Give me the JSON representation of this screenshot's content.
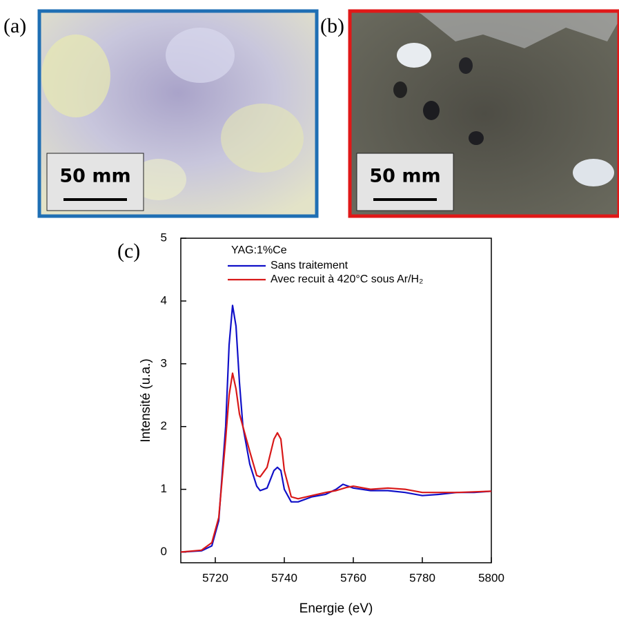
{
  "panels": [
    {
      "label": "(a)",
      "scale_bar": "50 mm"
    },
    {
      "label": "(b)",
      "scale_bar": "50 mm"
    },
    {
      "label": "(c)"
    }
  ],
  "chart_data": {
    "type": "line",
    "legend_title": "YAG:1%Ce",
    "x_label": "Energie (eV)",
    "y_label": "Intensité (u.a.)",
    "xlim": [
      5710,
      5800
    ],
    "xticks": [
      5720,
      5740,
      5760,
      5780,
      5800
    ],
    "ylim": [
      -0.17,
      5
    ],
    "yticks": [
      0,
      1,
      2,
      3,
      4,
      5
    ],
    "legend": "top-left",
    "series": [
      {
        "name": "Sans traitement",
        "color": "#1010c8",
        "x": [
          5710,
          5716,
          5719,
          5721,
          5723,
          5724,
          5725,
          5726,
          5727,
          5728,
          5730,
          5732,
          5733,
          5735,
          5737,
          5738,
          5739,
          5740,
          5742,
          5744,
          5748,
          5752,
          5755,
          5757,
          5760,
          5765,
          5770,
          5775,
          5780,
          5785,
          5790,
          5795,
          5800
        ],
        "values": [
          0,
          0.02,
          0.1,
          0.5,
          2.0,
          3.3,
          3.93,
          3.6,
          2.7,
          2.0,
          1.4,
          1.05,
          0.98,
          1.02,
          1.3,
          1.35,
          1.3,
          1.0,
          0.8,
          0.8,
          0.88,
          0.92,
          1.0,
          1.08,
          1.02,
          0.98,
          0.98,
          0.95,
          0.9,
          0.92,
          0.95,
          0.95,
          0.97
        ]
      },
      {
        "name": "Avec recuit à 420°C sous Ar/H₂",
        "color": "#d81818",
        "x": [
          5710,
          5716,
          5719,
          5721,
          5723,
          5724,
          5725,
          5726,
          5727,
          5728,
          5730,
          5732,
          5733,
          5735,
          5737,
          5738,
          5739,
          5740,
          5742,
          5744,
          5748,
          5752,
          5755,
          5758,
          5760,
          5765,
          5770,
          5775,
          5780,
          5785,
          5790,
          5795,
          5800
        ],
        "values": [
          0,
          0.03,
          0.15,
          0.55,
          1.8,
          2.5,
          2.85,
          2.6,
          2.2,
          2.0,
          1.6,
          1.22,
          1.2,
          1.35,
          1.8,
          1.9,
          1.8,
          1.3,
          0.88,
          0.85,
          0.9,
          0.95,
          0.98,
          1.03,
          1.05,
          1.0,
          1.02,
          1.0,
          0.95,
          0.95,
          0.95,
          0.96,
          0.97
        ]
      }
    ]
  }
}
